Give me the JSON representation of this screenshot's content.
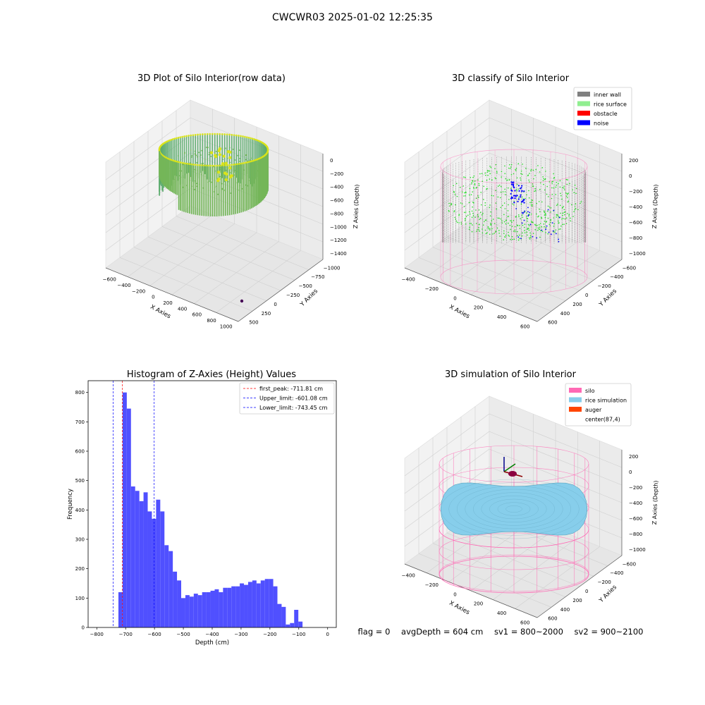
{
  "figure": {
    "title": "CWCWR03 2025-01-02 12:25:35",
    "status": {
      "flag": "flag = 0",
      "avg_depth": "avgDepth = 604 cm",
      "sv1": "sv1 = 800~2000",
      "sv2": "sv2 = 900~2100"
    }
  },
  "colors": {
    "viridis_low": "#21918c",
    "viridis_high": "#d9e31a",
    "inner_wall": "#808080",
    "rice_surface": "#90ee90",
    "rice_points": "#22dd22",
    "obstacle": "#ff0000",
    "noise": "#0000ff",
    "silo": "#ff69b4",
    "rice_simulation": "#87ceeb",
    "auger": "#ff4500",
    "hist_bar": "#5050ff",
    "first_peak_line": "#ff0000",
    "limit_line": "#0000ff"
  },
  "chart_data": [
    {
      "type": "scatter",
      "title": "3D Plot of Silo Interior(row data)",
      "xlabel": "X Axies",
      "ylabel": "Y Axies",
      "zlabel": "Z Axies (Depth)",
      "x_ticks": [
        "−600",
        "−400",
        "−200",
        "0",
        "200",
        "400",
        "600",
        "800",
        "1000"
      ],
      "y_ticks": [
        "−1000",
        "−750",
        "−500",
        "−250",
        "0",
        "250",
        "500"
      ],
      "z_ticks": [
        "0",
        "−200",
        "−400",
        "−600",
        "−800",
        "−1000",
        "−1200",
        "−1400"
      ],
      "colormap": "viridis",
      "outlier_point": {
        "x": 1000,
        "y": -700,
        "z": -1400
      }
    },
    {
      "type": "scatter",
      "title": "3D classify of Silo Interior",
      "xlabel": "X Axies",
      "ylabel": "Y Axies",
      "zlabel": "Z Axies (Depth)",
      "x_ticks": [
        "−400",
        "−200",
        "0",
        "200",
        "400",
        "600"
      ],
      "y_ticks": [
        "−600",
        "−400",
        "−200",
        "0",
        "200",
        "400",
        "600"
      ],
      "z_ticks": [
        "200",
        "0",
        "−200",
        "−400",
        "−600",
        "−800",
        "−1000"
      ],
      "legend": [
        "inner wall",
        "rice surface",
        "obstacle",
        "noise"
      ],
      "legend_position": "top-right"
    },
    {
      "type": "bar",
      "title": "Histogram of Z-Axies (Height) Values",
      "xlabel": "Depth (cm)",
      "ylabel": "Frequency",
      "xlim": [
        -830,
        30
      ],
      "ylim": [
        0,
        840
      ],
      "x_ticks": [
        -800,
        -700,
        -600,
        -500,
        -400,
        -300,
        -200,
        -100,
        0
      ],
      "x_tick_labels": [
        "−800",
        "−700",
        "−600",
        "−500",
        "−400",
        "−300",
        "−200",
        "−100",
        "0"
      ],
      "y_ticks": [
        0,
        100,
        200,
        300,
        400,
        500,
        600,
        700,
        800
      ],
      "bin_width": 14.5,
      "bins_start": -725,
      "values": [
        120,
        800,
        745,
        480,
        465,
        430,
        460,
        395,
        370,
        435,
        395,
        280,
        260,
        190,
        160,
        100,
        110,
        105,
        115,
        110,
        120,
        120,
        125,
        130,
        120,
        135,
        135,
        140,
        140,
        150,
        145,
        155,
        160,
        150,
        160,
        165,
        165,
        140,
        80,
        70,
        10,
        15,
        60,
        20
      ],
      "reference_lines": [
        {
          "label": "first_peak: -711.81 cm",
          "x": -711.81,
          "color": "#ff0000"
        },
        {
          "label": "Upper_limit: -601.08 cm",
          "x": -601.08,
          "color": "#0000ff"
        },
        {
          "label": "Lower_limit: -743.45 cm",
          "x": -743.45,
          "color": "#0000ff"
        }
      ],
      "legend_position": "top-right"
    },
    {
      "type": "area",
      "title": "3D simulation of Silo Interior",
      "xlabel": "X Axies",
      "ylabel": "Y Axies",
      "zlabel": "Z Axies (Depth)",
      "x_ticks": [
        "−400",
        "−200",
        "0",
        "200",
        "400",
        "600"
      ],
      "y_ticks": [
        "−600",
        "−400",
        "−200",
        "0",
        "200",
        "400",
        "600"
      ],
      "z_ticks": [
        "200",
        "0",
        "−200",
        "−400",
        "−600",
        "−800",
        "−1000"
      ],
      "legend": [
        "silo",
        "rice simulation",
        "auger",
        "center(87,4)"
      ],
      "legend_position": "top-right"
    }
  ]
}
